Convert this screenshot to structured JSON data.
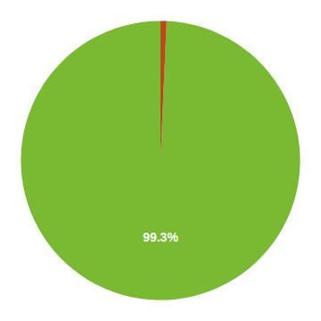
{
  "chart_data": {
    "type": "pie",
    "values": [
      99.3,
      0.7
    ],
    "colors": [
      "#7aba32",
      "#b84a1a"
    ],
    "annotations": [
      "99.3%"
    ]
  }
}
